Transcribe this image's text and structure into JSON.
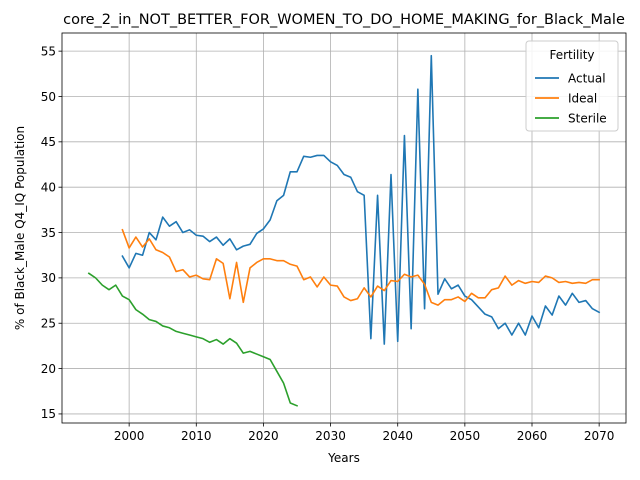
{
  "chart_data": {
    "type": "line",
    "title": "core_2_in_NOT_BETTER_FOR_WOMEN_TO_DO_HOME_MAKING_for_Black_Male",
    "xlabel": "Years",
    "ylabel": "% of Black_Male Q4_IQ Population",
    "xlim": [
      1990,
      2074
    ],
    "ylim": [
      14,
      57
    ],
    "xticks": [
      2000,
      2010,
      2020,
      2030,
      2040,
      2050,
      2060,
      2070
    ],
    "yticks": [
      15,
      20,
      25,
      30,
      35,
      40,
      45,
      50,
      55
    ],
    "grid": true,
    "legend": {
      "title": "Fertility",
      "placement": "top-right"
    },
    "series": [
      {
        "name": "Actual",
        "color": "#1f77b4",
        "x": [
          1999,
          2000,
          2001,
          2002,
          2003,
          2004,
          2005,
          2006,
          2007,
          2008,
          2009,
          2010,
          2011,
          2012,
          2013,
          2014,
          2015,
          2016,
          2017,
          2018,
          2019,
          2020,
          2021,
          2022,
          2023,
          2024,
          2025,
          2026,
          2027,
          2028,
          2029,
          2030,
          2031,
          2032,
          2033,
          2034,
          2035,
          2036,
          2037,
          2038,
          2039,
          2040,
          2041,
          2042,
          2043,
          2044,
          2045,
          2046,
          2047,
          2048,
          2049,
          2050,
          2051,
          2052,
          2053,
          2054,
          2055,
          2056,
          2057,
          2058,
          2059,
          2060,
          2061,
          2062,
          2063,
          2064,
          2065,
          2066,
          2067,
          2068,
          2069,
          2070
        ],
        "y": [
          32.4,
          31.1,
          32.7,
          32.5,
          35.0,
          34.2,
          36.7,
          35.7,
          36.2,
          35.0,
          35.3,
          34.7,
          34.6,
          34.0,
          34.5,
          33.6,
          34.3,
          33.1,
          33.5,
          33.7,
          34.9,
          35.4,
          36.4,
          38.5,
          39.1,
          41.7,
          41.7,
          43.4,
          43.3,
          43.5,
          43.5,
          42.8,
          42.4,
          41.4,
          41.1,
          39.5,
          39.1,
          23.3,
          39.1,
          22.7,
          41.4,
          23.0,
          45.7,
          24.4,
          50.8,
          26.6,
          54.5,
          28.2,
          29.9,
          28.8,
          29.2,
          28.0,
          27.6,
          26.8,
          26.0,
          25.7,
          24.4,
          25.0,
          23.7,
          25.0,
          23.7,
          25.8,
          24.5,
          26.9,
          25.9,
          28.0,
          27.0,
          28.3,
          27.3,
          27.5,
          26.6,
          26.2
        ]
      },
      {
        "name": "Ideal",
        "color": "#ff7f0e",
        "x": [
          1999,
          2000,
          2001,
          2002,
          2003,
          2004,
          2005,
          2006,
          2007,
          2008,
          2009,
          2010,
          2011,
          2012,
          2013,
          2014,
          2015,
          2016,
          2017,
          2018,
          2019,
          2020,
          2021,
          2022,
          2023,
          2024,
          2025,
          2026,
          2027,
          2028,
          2029,
          2030,
          2031,
          2032,
          2033,
          2034,
          2035,
          2036,
          2037,
          2038,
          2039,
          2040,
          2041,
          2042,
          2043,
          2044,
          2045,
          2046,
          2047,
          2048,
          2049,
          2050,
          2051,
          2052,
          2053,
          2054,
          2055,
          2056,
          2057,
          2058,
          2059,
          2060,
          2061,
          2062,
          2063,
          2064,
          2065,
          2066,
          2067,
          2068,
          2069,
          2070
        ],
        "y": [
          35.3,
          33.3,
          34.5,
          33.4,
          34.3,
          33.1,
          32.8,
          32.3,
          30.7,
          30.9,
          30.1,
          30.3,
          29.9,
          29.8,
          32.1,
          31.6,
          27.7,
          31.7,
          27.3,
          31.1,
          31.7,
          32.1,
          32.1,
          31.9,
          31.9,
          31.5,
          31.3,
          29.8,
          30.1,
          29.0,
          30.1,
          29.2,
          29.1,
          27.9,
          27.5,
          27.7,
          28.9,
          27.9,
          29.1,
          28.6,
          29.7,
          29.6,
          30.4,
          30.1,
          30.3,
          29.3,
          27.3,
          27.0,
          27.6,
          27.6,
          27.9,
          27.4,
          28.3,
          27.8,
          27.8,
          28.7,
          28.9,
          30.2,
          29.2,
          29.7,
          29.4,
          29.6,
          29.5,
          30.2,
          30.0,
          29.5,
          29.6,
          29.4,
          29.5,
          29.4,
          29.8,
          29.8
        ]
      },
      {
        "name": "Sterile",
        "color": "#2ca02c",
        "x": [
          1994,
          1995,
          1996,
          1997,
          1998,
          1999,
          2000,
          2001,
          2002,
          2003,
          2004,
          2005,
          2006,
          2007,
          2008,
          2009,
          2010,
          2011,
          2012,
          2013,
          2014,
          2015,
          2016,
          2017,
          2018,
          2019,
          2020,
          2021,
          2022,
          2023,
          2024,
          2025
        ],
        "y": [
          30.5,
          30.0,
          29.2,
          28.7,
          29.2,
          28.0,
          27.6,
          26.5,
          26.0,
          25.4,
          25.2,
          24.7,
          24.5,
          24.1,
          23.9,
          23.7,
          23.5,
          23.3,
          22.9,
          23.2,
          22.7,
          23.3,
          22.8,
          21.7,
          21.9,
          21.6,
          21.3,
          21.0,
          19.7,
          18.4,
          16.2,
          15.9
        ]
      }
    ]
  }
}
